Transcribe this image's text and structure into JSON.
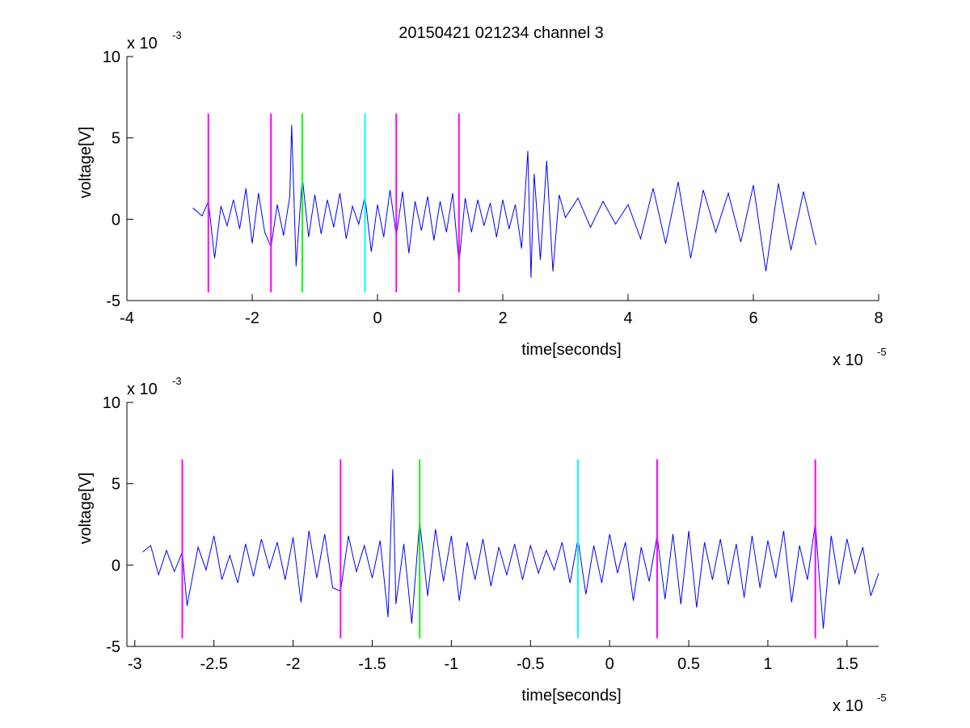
{
  "figure_title": "20150421 021234 channel 3",
  "chart_data": [
    {
      "type": "line",
      "title": "20150421 021234 channel 3",
      "xlabel": "time[seconds]",
      "ylabel": "voltage[V]",
      "x_exponent_label": "x 10",
      "x_exponent_power": "-5",
      "y_exponent_label": "x 10",
      "y_exponent_power": "-3",
      "xlim": [
        -4,
        8
      ],
      "ylim": [
        -5,
        10
      ],
      "xticks": [
        -4,
        -2,
        0,
        2,
        4,
        6,
        8
      ],
      "xtick_labels": [
        "-4",
        "-2",
        "0",
        "2",
        "4",
        "6",
        "8"
      ],
      "yticks": [
        -5,
        0,
        5,
        10
      ],
      "ytick_labels": [
        "-5",
        "0",
        "5",
        "10"
      ],
      "grid": false,
      "series": [
        {
          "color": "#0000ff",
          "x": [
            -2.95,
            -2.8,
            -2.7,
            -2.6,
            -2.5,
            -2.4,
            -2.3,
            -2.2,
            -2.1,
            -2.0,
            -1.9,
            -1.8,
            -1.7,
            -1.6,
            -1.5,
            -1.4,
            -1.37,
            -1.3,
            -1.2,
            -1.1,
            -1.0,
            -0.9,
            -0.8,
            -0.7,
            -0.6,
            -0.5,
            -0.4,
            -0.3,
            -0.2,
            -0.1,
            0.0,
            0.1,
            0.2,
            0.3,
            0.4,
            0.5,
            0.6,
            0.7,
            0.8,
            0.9,
            1.0,
            1.1,
            1.2,
            1.3,
            1.4,
            1.5,
            1.6,
            1.7,
            1.8,
            1.9,
            2.0,
            2.1,
            2.2,
            2.3,
            2.4,
            2.45,
            2.5,
            2.6,
            2.7,
            2.8,
            2.9,
            3.0,
            3.2,
            3.4,
            3.6,
            3.8,
            4.0,
            4.2,
            4.4,
            4.6,
            4.8,
            5.0,
            5.2,
            5.4,
            5.6,
            5.8,
            6.0,
            6.2,
            6.4,
            6.6,
            6.8,
            7.0
          ],
          "y": [
            0.7,
            0.2,
            1.1,
            -2.4,
            0.8,
            -0.4,
            1.2,
            -0.6,
            1.9,
            -1.5,
            1.6,
            -0.8,
            -1.7,
            0.9,
            -1.0,
            1.4,
            5.8,
            -2.9,
            2.6,
            -1.1,
            1.5,
            -0.9,
            1.2,
            -0.5,
            1.6,
            -1.2,
            0.8,
            -0.3,
            1.4,
            -2.0,
            0.9,
            -1.1,
            1.8,
            -1.0,
            1.7,
            -2.1,
            1.1,
            -0.7,
            1.4,
            -1.3,
            1.1,
            -0.8,
            1.6,
            -2.7,
            1.3,
            -0.8,
            1.2,
            -0.4,
            1.0,
            -1.1,
            1.2,
            -0.6,
            0.9,
            -1.8,
            4.2,
            -3.6,
            2.8,
            -2.5,
            3.6,
            -3.2,
            1.5,
            0.1,
            1.3,
            -0.5,
            1.1,
            -0.3,
            0.9,
            -1.2,
            1.9,
            -1.5,
            2.3,
            -2.4,
            1.8,
            -0.8,
            1.6,
            -1.4,
            2.1,
            -3.2,
            2.2,
            -1.9,
            1.7,
            -1.6
          ],
          "markers": [
            {
              "x": -2.7,
              "color": "#ff00ff"
            },
            {
              "x": -1.7,
              "color": "#ff00ff"
            },
            {
              "x": -1.2,
              "color": "#00ff00"
            },
            {
              "x": -0.2,
              "color": "#00ffff"
            },
            {
              "x": 0.3,
              "color": "#ff00ff"
            },
            {
              "x": 1.3,
              "color": "#ff00ff"
            }
          ]
        }
      ]
    },
    {
      "type": "line",
      "title": "",
      "xlabel": "time[seconds]",
      "ylabel": "voltage[V]",
      "x_exponent_label": "x 10",
      "x_exponent_power": "-5",
      "y_exponent_label": "x 10",
      "y_exponent_power": "-3",
      "xlim": [
        -3.05,
        1.7
      ],
      "ylim": [
        -5,
        10
      ],
      "xticks": [
        -3,
        -2.5,
        -2,
        -1.5,
        -1,
        -0.5,
        0,
        0.5,
        1,
        1.5
      ],
      "xtick_labels": [
        "-3",
        "-2.5",
        "-2",
        "-1.5",
        "-1",
        "-0.5",
        "0",
        "0.5",
        "1",
        "1.5"
      ],
      "yticks": [
        -5,
        0,
        5,
        10
      ],
      "ytick_labels": [
        "-5",
        "0",
        "5",
        "10"
      ],
      "grid": false,
      "series": [
        {
          "color": "#0000ff",
          "x": [
            -2.95,
            -2.9,
            -2.85,
            -2.8,
            -2.75,
            -2.7,
            -2.67,
            -2.6,
            -2.55,
            -2.5,
            -2.45,
            -2.4,
            -2.35,
            -2.3,
            -2.25,
            -2.2,
            -2.15,
            -2.1,
            -2.05,
            -2.0,
            -1.95,
            -1.9,
            -1.85,
            -1.8,
            -1.75,
            -1.7,
            -1.65,
            -1.6,
            -1.55,
            -1.5,
            -1.45,
            -1.4,
            -1.37,
            -1.35,
            -1.3,
            -1.25,
            -1.2,
            -1.15,
            -1.1,
            -1.05,
            -1.0,
            -0.95,
            -0.9,
            -0.85,
            -0.8,
            -0.75,
            -0.7,
            -0.65,
            -0.6,
            -0.55,
            -0.5,
            -0.45,
            -0.4,
            -0.35,
            -0.3,
            -0.25,
            -0.2,
            -0.15,
            -0.1,
            -0.05,
            0.0,
            0.05,
            0.1,
            0.15,
            0.2,
            0.25,
            0.3,
            0.35,
            0.4,
            0.45,
            0.5,
            0.55,
            0.6,
            0.65,
            0.7,
            0.75,
            0.8,
            0.85,
            0.9,
            0.95,
            1.0,
            1.05,
            1.1,
            1.15,
            1.2,
            1.25,
            1.3,
            1.33,
            1.35,
            1.4,
            1.45,
            1.5,
            1.55,
            1.6,
            1.65,
            1.7
          ],
          "y": [
            0.8,
            1.2,
            -0.6,
            0.9,
            -0.4,
            0.8,
            -2.5,
            1.1,
            -0.3,
            1.8,
            -0.9,
            0.6,
            -1.1,
            1.3,
            -0.7,
            1.6,
            -0.2,
            1.4,
            -0.9,
            1.7,
            -2.3,
            2.1,
            -0.8,
            1.9,
            -1.4,
            -1.6,
            1.8,
            -0.4,
            1.2,
            -0.8,
            1.5,
            -3.2,
            5.9,
            -2.4,
            1.3,
            -3.6,
            2.7,
            -1.9,
            2.2,
            -1.0,
            1.8,
            -2.2,
            1.4,
            -0.9,
            1.6,
            -1.3,
            1.1,
            -0.6,
            1.3,
            -0.9,
            1.2,
            -0.5,
            0.9,
            -0.3,
            1.4,
            -1.1,
            1.6,
            -1.8,
            1.2,
            -1.1,
            1.9,
            -0.5,
            1.4,
            -2.2,
            1.1,
            -1.0,
            1.8,
            -2.1,
            1.9,
            -2.4,
            2.1,
            -2.6,
            1.4,
            -0.9,
            1.6,
            -1.2,
            1.3,
            -2.0,
            1.8,
            -1.4,
            1.5,
            -0.8,
            2.1,
            -2.3,
            1.2,
            -0.9,
            2.6,
            -1.5,
            -3.9,
            1.8,
            -1.2,
            1.6,
            -0.5,
            1.1,
            -1.9,
            -0.5
          ],
          "markers": [
            {
              "x": -2.7,
              "color": "#ff00ff"
            },
            {
              "x": -1.7,
              "color": "#ff00ff"
            },
            {
              "x": -1.2,
              "color": "#00ff00"
            },
            {
              "x": -0.2,
              "color": "#00ffff"
            },
            {
              "x": 0.3,
              "color": "#ff00ff"
            },
            {
              "x": 1.3,
              "color": "#ff00ff"
            }
          ]
        }
      ]
    }
  ]
}
